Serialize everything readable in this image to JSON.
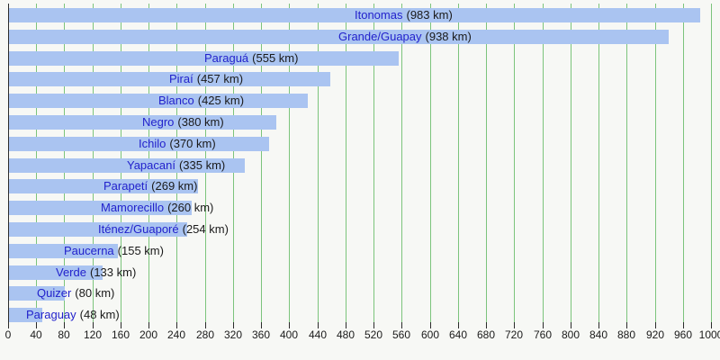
{
  "chart_data": {
    "type": "bar",
    "orientation": "horizontal",
    "title": "",
    "xlabel": "",
    "ylabel": "",
    "unit": "km",
    "grid": "vertical",
    "categories": [
      "Itonomas",
      "Grande/Guapay",
      "Paraguá",
      "Piraí",
      "Blanco",
      "Negro",
      "Ichilo",
      "Yapacaní",
      "Parapetí",
      "Mamorecillo",
      "Iténez/Guaporé",
      "Paucerna",
      "Verde",
      "Quizer",
      "Paraguay"
    ],
    "values": [
      983,
      938,
      555,
      457,
      425,
      380,
      370,
      335,
      269,
      260,
      254,
      155,
      133,
      80,
      48
    ],
    "rivers": [
      {
        "name": "Itonomas",
        "length_km": 983,
        "value_label": "(983 km)"
      },
      {
        "name": "Grande/Guapay",
        "length_km": 938,
        "value_label": "(938 km)"
      },
      {
        "name": "Paraguá",
        "length_km": 555,
        "value_label": "(555 km)"
      },
      {
        "name": "Piraí",
        "length_km": 457,
        "value_label": "(457 km)"
      },
      {
        "name": "Blanco",
        "length_km": 425,
        "value_label": "(425 km)"
      },
      {
        "name": "Negro",
        "length_km": 380,
        "value_label": "(380 km)"
      },
      {
        "name": "Ichilo",
        "length_km": 370,
        "value_label": "(370 km)"
      },
      {
        "name": "Yapacaní",
        "length_km": 335,
        "value_label": "(335 km)"
      },
      {
        "name": "Parapetí",
        "length_km": 269,
        "value_label": "(269 km)"
      },
      {
        "name": "Mamorecillo",
        "length_km": 260,
        "value_label": "(260 km)"
      },
      {
        "name": "Iténez/Guaporé",
        "length_km": 254,
        "value_label": "(254 km)"
      },
      {
        "name": "Paucerna",
        "length_km": 155,
        "value_label": "(155 km)"
      },
      {
        "name": "Verde",
        "length_km": 133,
        "value_label": "(133 km)"
      },
      {
        "name": "Quizer",
        "length_km": 80,
        "value_label": "(80 km)"
      },
      {
        "name": "Paraguay",
        "length_km": 48,
        "value_label": "(48 km)"
      }
    ],
    "axis": {
      "min": 0,
      "max": 1000,
      "step": 40,
      "ticks": [
        0,
        40,
        80,
        120,
        160,
        200,
        240,
        280,
        320,
        360,
        400,
        440,
        480,
        520,
        560,
        600,
        640,
        680,
        720,
        760,
        800,
        840,
        880,
        920,
        960,
        1000
      ]
    },
    "label_position": "starts-at-half-of-bar"
  },
  "colors": {
    "background": "#f7f8f5",
    "bar_fill": "#aac4f1",
    "gridline_green": "#7cc47c",
    "axis_black": "#2b2b2b",
    "river_link_blue": "#2222cc",
    "value_text_black": "#1a1a1a"
  }
}
